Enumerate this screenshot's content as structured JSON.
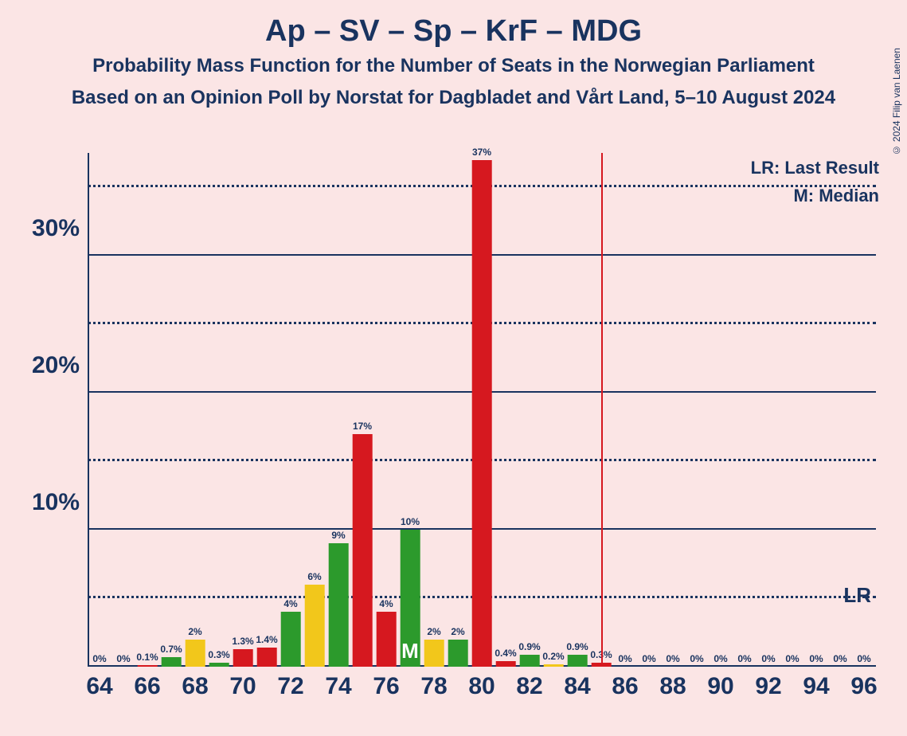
{
  "titles": {
    "main": "Ap – SV – Sp – KrF – MDG",
    "sub1": "Probability Mass Function for the Number of Seats in the Norwegian Parliament",
    "sub2": "Based on an Opinion Poll by Norstat for Dagbladet and Vårt Land, 5–10 August 2024"
  },
  "copyright": "© 2024 Filip van Laenen",
  "legend": {
    "lr": "LR: Last Result",
    "m": "M: Median"
  },
  "colors": {
    "green": "#2c9a2c",
    "yellow": "#f2c71b",
    "red": "#d6181f",
    "axis": "#19335f",
    "background": "#fbe5e5"
  },
  "chart": {
    "type": "bar",
    "ymax": 37.5,
    "y_solid_ticks": [
      10,
      20,
      30
    ],
    "y_dotted_ticks": [
      5,
      15,
      25,
      35
    ],
    "y_labels": {
      "10": "10%",
      "20": "20%",
      "30": "30%"
    },
    "x_min": 64,
    "x_max": 96,
    "x_tick_step": 2,
    "lr_at": 85,
    "lr_label": "LR",
    "median_at": 77,
    "median_mark": "M",
    "bars": [
      {
        "x": 64,
        "v": 0,
        "label": "0%",
        "color": "green"
      },
      {
        "x": 65,
        "v": 0,
        "label": "0%",
        "color": "yellow"
      },
      {
        "x": 66,
        "v": 0.1,
        "label": "0.1%",
        "color": "red"
      },
      {
        "x": 67,
        "v": 0.7,
        "label": "0.7%",
        "color": "green"
      },
      {
        "x": 68,
        "v": 2,
        "label": "2%",
        "color": "yellow"
      },
      {
        "x": 69,
        "v": 0.3,
        "label": "0.3%",
        "color": "green"
      },
      {
        "x": 70,
        "v": 1.3,
        "label": "1.3%",
        "color": "red"
      },
      {
        "x": 71,
        "v": 1.4,
        "label": "1.4%",
        "color": "red"
      },
      {
        "x": 72,
        "v": 4,
        "label": "4%",
        "color": "green"
      },
      {
        "x": 73,
        "v": 6,
        "label": "6%",
        "color": "yellow"
      },
      {
        "x": 74,
        "v": 9,
        "label": "9%",
        "color": "green"
      },
      {
        "x": 75,
        "v": 17,
        "label": "17%",
        "color": "red"
      },
      {
        "x": 76,
        "v": 4,
        "label": "4%",
        "color": "red"
      },
      {
        "x": 77,
        "v": 10,
        "label": "10%",
        "color": "green"
      },
      {
        "x": 78,
        "v": 2,
        "label": "2%",
        "color": "yellow"
      },
      {
        "x": 79,
        "v": 2,
        "label": "2%",
        "color": "green"
      },
      {
        "x": 80,
        "v": 37,
        "label": "37%",
        "color": "red"
      },
      {
        "x": 81,
        "v": 0.4,
        "label": "0.4%",
        "color": "red"
      },
      {
        "x": 82,
        "v": 0.9,
        "label": "0.9%",
        "color": "green"
      },
      {
        "x": 83,
        "v": 0.2,
        "label": "0.2%",
        "color": "yellow"
      },
      {
        "x": 84,
        "v": 0.9,
        "label": "0.9%",
        "color": "green"
      },
      {
        "x": 85,
        "v": 0.3,
        "label": "0.3%",
        "color": "red"
      },
      {
        "x": 86,
        "v": 0,
        "label": "0%",
        "color": "red"
      },
      {
        "x": 87,
        "v": 0,
        "label": "0%",
        "color": "green"
      },
      {
        "x": 88,
        "v": 0,
        "label": "0%",
        "color": "yellow"
      },
      {
        "x": 89,
        "v": 0,
        "label": "0%",
        "color": "green"
      },
      {
        "x": 90,
        "v": 0,
        "label": "0%",
        "color": "red"
      },
      {
        "x": 91,
        "v": 0,
        "label": "0%",
        "color": "red"
      },
      {
        "x": 92,
        "v": 0,
        "label": "0%",
        "color": "green"
      },
      {
        "x": 93,
        "v": 0,
        "label": "0%",
        "color": "yellow"
      },
      {
        "x": 94,
        "v": 0,
        "label": "0%",
        "color": "green"
      },
      {
        "x": 95,
        "v": 0,
        "label": "0%",
        "color": "red"
      },
      {
        "x": 96,
        "v": 0,
        "label": "0%",
        "color": "red"
      }
    ]
  },
  "xticks": {
    "64": "64",
    "66": "66",
    "68": "68",
    "70": "70",
    "72": "72",
    "74": "74",
    "76": "76",
    "78": "78",
    "80": "80",
    "82": "82",
    "84": "84",
    "86": "86",
    "88": "88",
    "90": "90",
    "92": "92",
    "94": "94",
    "96": "96"
  }
}
